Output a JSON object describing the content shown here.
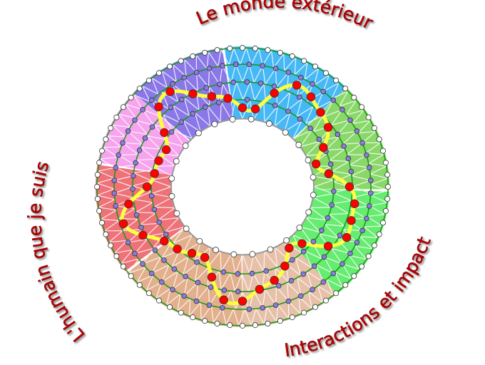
{
  "labels": {
    "top": "Le monde extérieur",
    "left": "L'humain que je suis",
    "bottom_right": "Interactions et impact"
  },
  "colors": {
    "label_text": "#c00000",
    "path": "#ffff40",
    "path_node": "#ff0000",
    "mid_node": "#8a7be0",
    "ring_line": "#1a9a1a",
    "mesh": "#ffffff",
    "sectors": [
      "#45b8f5",
      "#8ad86a",
      "#66ec70",
      "#e6c0a8",
      "#e2b08c",
      "#ee7278",
      "#f6a4ee",
      "#8a78e8"
    ]
  }
}
